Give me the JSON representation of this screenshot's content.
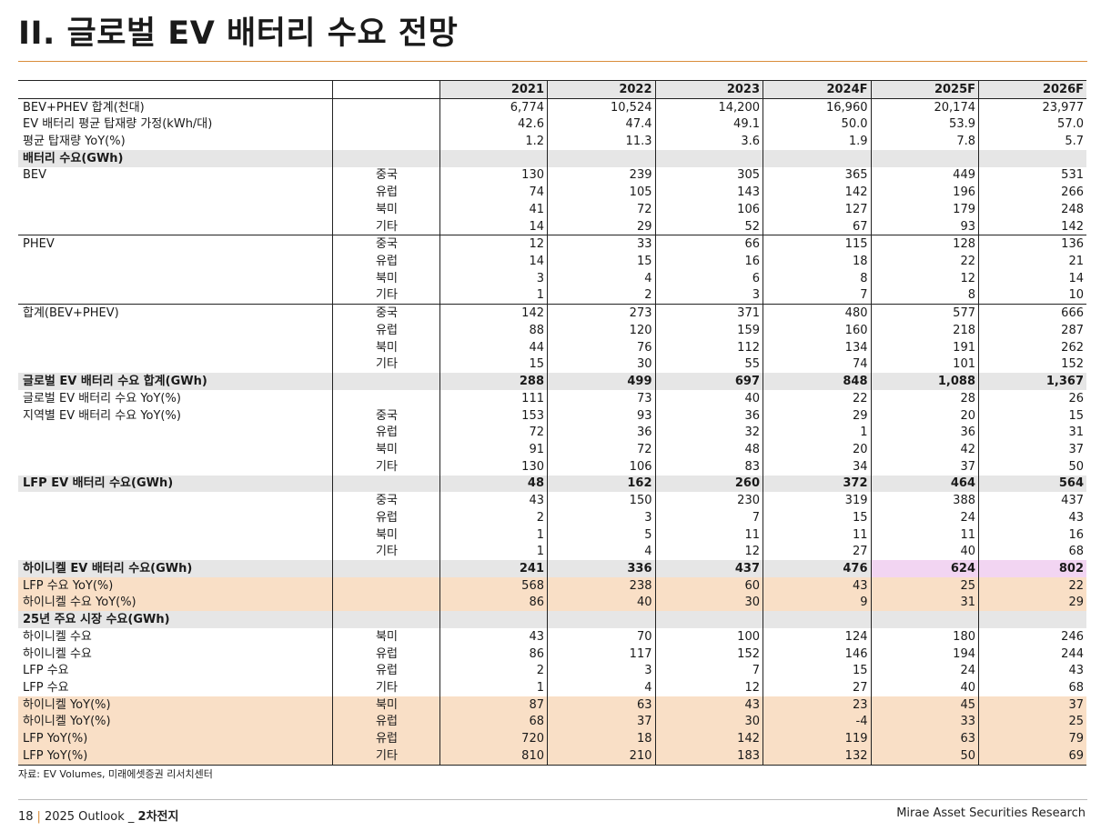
{
  "page": {
    "title": "II. 글로벌 EV 배터리 수요 전망",
    "source": "자료: EV Volumes, 미래에셋증권 리서치센터",
    "footer_page": "18",
    "footer_sep": "|",
    "footer_report": "2025 Outlook _ ",
    "footer_report_bold": "2차전지",
    "footer_right": "Mirae Asset Securities Research"
  },
  "table": {
    "columns": [
      "",
      "",
      "2021",
      "2022",
      "2023",
      "2024F",
      "2025F",
      "2026F"
    ],
    "rows": [
      {
        "label": "BEV+PHEV 합계(천대)",
        "sub": "",
        "values": [
          "6,774",
          "10,524",
          "14,200",
          "16,960",
          "20,174",
          "23,977"
        ],
        "style": ""
      },
      {
        "label": "EV 배터리 평균 탑재량 가정(kWh/대)",
        "sub": "",
        "values": [
          "42.6",
          "47.4",
          "49.1",
          "50.0",
          "53.9",
          "57.0"
        ],
        "style": ""
      },
      {
        "label": "평균 탑재량 YoY(%)",
        "sub": "",
        "values": [
          "1.2",
          "11.3",
          "3.6",
          "1.9",
          "7.8",
          "5.7"
        ],
        "style": ""
      },
      {
        "label": "배터리 수요(GWh)",
        "sub": "",
        "values": [
          "",
          "",
          "",
          "",
          "",
          ""
        ],
        "style": "section"
      },
      {
        "label": "BEV",
        "sub": "중국",
        "values": [
          "130",
          "239",
          "305",
          "365",
          "449",
          "531"
        ],
        "style": ""
      },
      {
        "label": "",
        "sub": "유럽",
        "values": [
          "74",
          "105",
          "143",
          "142",
          "196",
          "266"
        ],
        "style": ""
      },
      {
        "label": "",
        "sub": "북미",
        "values": [
          "41",
          "72",
          "106",
          "127",
          "179",
          "248"
        ],
        "style": ""
      },
      {
        "label": "",
        "sub": "기타",
        "values": [
          "14",
          "29",
          "52",
          "67",
          "93",
          "142"
        ],
        "style": ""
      },
      {
        "label": "PHEV",
        "sub": "중국",
        "values": [
          "12",
          "33",
          "66",
          "115",
          "128",
          "136"
        ],
        "style": "gtop"
      },
      {
        "label": "",
        "sub": "유럽",
        "values": [
          "14",
          "15",
          "16",
          "18",
          "22",
          "21"
        ],
        "style": ""
      },
      {
        "label": "",
        "sub": "북미",
        "values": [
          "3",
          "4",
          "6",
          "8",
          "12",
          "14"
        ],
        "style": ""
      },
      {
        "label": "",
        "sub": "기타",
        "values": [
          "1",
          "2",
          "3",
          "7",
          "8",
          "10"
        ],
        "style": ""
      },
      {
        "label": "합계(BEV+PHEV)",
        "sub": "중국",
        "values": [
          "142",
          "273",
          "371",
          "480",
          "577",
          "666"
        ],
        "style": "gtop"
      },
      {
        "label": "",
        "sub": "유럽",
        "values": [
          "88",
          "120",
          "159",
          "160",
          "218",
          "287"
        ],
        "style": ""
      },
      {
        "label": "",
        "sub": "북미",
        "values": [
          "44",
          "76",
          "112",
          "134",
          "191",
          "262"
        ],
        "style": ""
      },
      {
        "label": "",
        "sub": "기타",
        "values": [
          "15",
          "30",
          "55",
          "74",
          "101",
          "152"
        ],
        "style": ""
      },
      {
        "label": "글로벌 EV 배터리 수요 합계(GWh)",
        "sub": "",
        "values": [
          "288",
          "499",
          "697",
          "848",
          "1,088",
          "1,367"
        ],
        "style": "section"
      },
      {
        "label": "글로벌 EV 배터리 수요 YoY(%)",
        "sub": "",
        "values": [
          "111",
          "73",
          "40",
          "22",
          "28",
          "26"
        ],
        "style": ""
      },
      {
        "label": "지역별 EV 배터리 수요 YoY(%)",
        "sub": "중국",
        "values": [
          "153",
          "93",
          "36",
          "29",
          "20",
          "15"
        ],
        "style": ""
      },
      {
        "label": "",
        "sub": "유럽",
        "values": [
          "72",
          "36",
          "32",
          "1",
          "36",
          "31"
        ],
        "style": ""
      },
      {
        "label": "",
        "sub": "북미",
        "values": [
          "91",
          "72",
          "48",
          "20",
          "42",
          "37"
        ],
        "style": ""
      },
      {
        "label": "",
        "sub": "기타",
        "values": [
          "130",
          "106",
          "83",
          "34",
          "37",
          "50"
        ],
        "style": ""
      },
      {
        "label": "LFP EV 배터리 수요(GWh)",
        "sub": "",
        "values": [
          "48",
          "162",
          "260",
          "372",
          "464",
          "564"
        ],
        "style": "section"
      },
      {
        "label": "",
        "sub": "중국",
        "values": [
          "43",
          "150",
          "230",
          "319",
          "388",
          "437"
        ],
        "style": ""
      },
      {
        "label": "",
        "sub": "유럽",
        "values": [
          "2",
          "3",
          "7",
          "15",
          "24",
          "43"
        ],
        "style": ""
      },
      {
        "label": "",
        "sub": "북미",
        "values": [
          "1",
          "5",
          "11",
          "11",
          "11",
          "16"
        ],
        "style": ""
      },
      {
        "label": "",
        "sub": "기타",
        "values": [
          "1",
          "4",
          "12",
          "27",
          "40",
          "68"
        ],
        "style": ""
      },
      {
        "label": "하이니켈 EV 배터리 수요(GWh)",
        "sub": "",
        "values": [
          "241",
          "336",
          "437",
          "476",
          "624",
          "802"
        ],
        "style": "section",
        "pink": [
          4,
          5
        ]
      },
      {
        "label": "LFP 수요 YoY(%)",
        "sub": "",
        "values": [
          "568",
          "238",
          "60",
          "43",
          "25",
          "22"
        ],
        "style": "hl"
      },
      {
        "label": "하이니켈 수요 YoY(%)",
        "sub": "",
        "values": [
          "86",
          "40",
          "30",
          "9",
          "31",
          "29"
        ],
        "style": "hl"
      },
      {
        "label": "25년 주요 시장 수요(GWh)",
        "sub": "",
        "values": [
          "",
          "",
          "",
          "",
          "",
          ""
        ],
        "style": "section"
      },
      {
        "label": "하이니켈 수요",
        "sub": "북미",
        "values": [
          "43",
          "70",
          "100",
          "124",
          "180",
          "246"
        ],
        "style": ""
      },
      {
        "label": "하이니켈 수요",
        "sub": "유럽",
        "values": [
          "86",
          "117",
          "152",
          "146",
          "194",
          "244"
        ],
        "style": ""
      },
      {
        "label": "LFP 수요",
        "sub": "유럽",
        "values": [
          "2",
          "3",
          "7",
          "15",
          "24",
          "43"
        ],
        "style": ""
      },
      {
        "label": "LFP 수요",
        "sub": "기타",
        "values": [
          "1",
          "4",
          "12",
          "27",
          "40",
          "68"
        ],
        "style": ""
      },
      {
        "label": "하이니켈 YoY(%)",
        "sub": "북미",
        "values": [
          "87",
          "63",
          "43",
          "23",
          "45",
          "37"
        ],
        "style": "hl"
      },
      {
        "label": "하이니켈 YoY(%)",
        "sub": "유럽",
        "values": [
          "68",
          "37",
          "30",
          "-4",
          "33",
          "25"
        ],
        "style": "hl"
      },
      {
        "label": "LFP YoY(%)",
        "sub": "유럽",
        "values": [
          "720",
          "18",
          "142",
          "119",
          "63",
          "79"
        ],
        "style": "hl"
      },
      {
        "label": "LFP YoY(%)",
        "sub": "기타",
        "values": [
          "810",
          "210",
          "183",
          "132",
          "50",
          "69"
        ],
        "style": "hl last"
      }
    ]
  }
}
